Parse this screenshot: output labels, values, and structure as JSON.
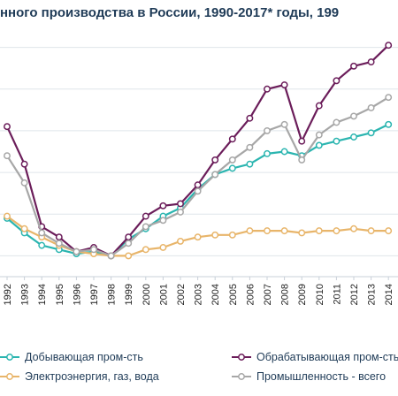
{
  "chart_data": {
    "type": "line",
    "title": "нного производства в России, 1990-2017* годы, 199",
    "x": [
      1992,
      1993,
      1994,
      1995,
      1996,
      1997,
      1998,
      1999,
      2000,
      2001,
      2002,
      2003,
      2004,
      2005,
      2006,
      2007,
      2008,
      2009,
      2010,
      2011,
      2012,
      2013,
      2014
    ],
    "categories": [
      "1992",
      "1993",
      "1994",
      "1995",
      "1996",
      "1997",
      "1998",
      "1999",
      "2000",
      "2001",
      "2002",
      "2003",
      "2004",
      "2005",
      "2006",
      "2007",
      "2008",
      "2009",
      "2010",
      "2011",
      "2012",
      "2013",
      "2014"
    ],
    "series": [
      {
        "name": "Добывающая пром-сть",
        "color": "#2bb5b0",
        "marker": "circle",
        "values": [
          118,
          111,
          105,
          103,
          101,
          102,
          100,
          108,
          113,
          119,
          123,
          132,
          139,
          142,
          144,
          149,
          150,
          148,
          153,
          155,
          157,
          159,
          163
        ]
      },
      {
        "name": "Обрабатывающая пром-сть",
        "color": "#6b1d5a",
        "marker": "circle",
        "values": [
          162,
          144,
          114,
          109,
          102,
          104,
          100,
          109,
          119,
          124,
          125,
          134,
          146,
          156,
          166,
          180,
          182,
          155,
          172,
          184,
          191,
          193,
          201
        ]
      },
      {
        "name": "Электроэнергия, газ, вода",
        "color": "#e8b56a",
        "marker": "circle",
        "values": [
          119,
          113,
          109,
          105,
          102,
          101,
          100,
          100,
          103,
          104,
          107,
          109,
          110,
          110,
          112,
          112,
          112,
          111,
          112,
          112,
          113,
          112,
          112
        ]
      },
      {
        "name": "Промышленность - всего",
        "color": "#a7a7a7",
        "marker": "circle",
        "values": [
          148,
          135,
          111,
          106,
          102,
          103,
          100,
          106,
          114,
          117,
          121,
          131,
          139,
          146,
          152,
          160,
          163,
          146,
          158,
          164,
          167,
          171,
          176
        ]
      }
    ],
    "ylim": [
      90,
      210
    ],
    "grid": true,
    "legend": "bottom"
  }
}
